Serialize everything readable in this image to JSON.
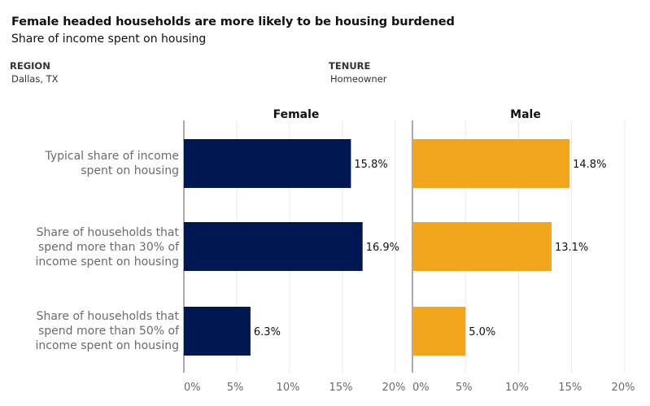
{
  "header": {
    "title": "Female headed households are more likely to be housing burdened",
    "subtitle": "Share of income spent on housing"
  },
  "filters": {
    "region": {
      "label": "REGION",
      "value": "Dallas, TX"
    },
    "tenure": {
      "label": "TENURE",
      "value": "Homeowner"
    }
  },
  "chart_data": {
    "type": "bar",
    "orientation": "horizontal",
    "title": "Female headed households are more likely to be housing burdened",
    "subtitle": "Share of income spent on housing",
    "categories": [
      "Typical share of income\nspent on housing",
      "Share of households that\nspend more than 30% of\nincome spent on housing",
      "Share of households that\nspend more than 50% of\nincome spent on housing"
    ],
    "series": [
      {
        "name": "Female",
        "color": "#011751",
        "values": [
          15.8,
          16.9,
          6.3
        ],
        "labels": [
          "15.8%",
          "16.9%",
          "6.3%"
        ]
      },
      {
        "name": "Male",
        "color": "#f2a61c",
        "values": [
          14.8,
          13.1,
          5.0
        ],
        "labels": [
          "14.8%",
          "13.1%",
          "5.0%"
        ]
      }
    ],
    "xlim": [
      0,
      20
    ],
    "xticks": [
      0,
      5,
      10,
      15,
      20
    ],
    "xtick_labels": [
      "0%",
      "5%",
      "10%",
      "15%",
      "20%"
    ],
    "grid": true,
    "xlabel": "",
    "ylabel": ""
  }
}
